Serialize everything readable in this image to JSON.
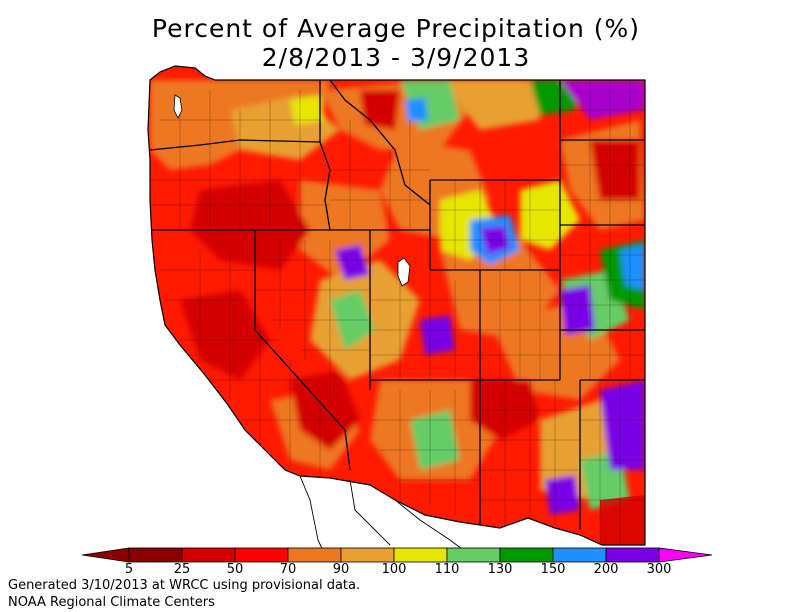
{
  "title": {
    "line1": "Percent of Average Precipitation (%)",
    "line2": "2/8/2013 - 3/9/2013"
  },
  "legend": {
    "bins": [
      {
        "label": "5",
        "color": "#8b0000"
      },
      {
        "label": "25",
        "color": "#d40000"
      },
      {
        "label": "50",
        "color": "#ff0000"
      },
      {
        "label": "70",
        "color": "#ee7722"
      },
      {
        "label": "90",
        "color": "#e8a030"
      },
      {
        "label": "100",
        "color": "#e6e600"
      },
      {
        "label": "110",
        "color": "#66cc66"
      },
      {
        "label": "130",
        "color": "#009900"
      },
      {
        "label": "150",
        "color": "#1e90ff"
      },
      {
        "label": "200",
        "color": "#7a00e6"
      },
      {
        "label": "300",
        "color": "#aa00cc"
      }
    ],
    "low_color": "#8b0000",
    "high_color": "#ff00ff"
  },
  "footer": {
    "line1": "Generated 3/10/2013 at WRCC using provisional data.",
    "line2": "NOAA Regional Climate Centers"
  }
}
